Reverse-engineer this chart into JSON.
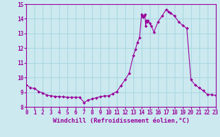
{
  "x": [
    0,
    0.5,
    1,
    1.5,
    2,
    2.5,
    3,
    3.5,
    4,
    4.5,
    5,
    5.5,
    6,
    6.5,
    7,
    7.5,
    8,
    8.5,
    9,
    9.5,
    10,
    10.5,
    11,
    11.5,
    12,
    12.5,
    13,
    13.25,
    13.5,
    13.75,
    14,
    14.1,
    14.2,
    14.3,
    14.4,
    14.5,
    14.6,
    14.7,
    14.8,
    15,
    15.2,
    15.5,
    16,
    16.5,
    17,
    17.25,
    17.5,
    18,
    18.5,
    19,
    19.5,
    20,
    20.5,
    21,
    21.5,
    22,
    22.5,
    23
  ],
  "y": [
    9.5,
    9.3,
    9.25,
    9.05,
    8.95,
    8.8,
    8.75,
    8.72,
    8.7,
    8.68,
    8.65,
    8.65,
    8.65,
    8.65,
    8.3,
    8.45,
    8.55,
    8.62,
    8.7,
    8.75,
    8.75,
    8.9,
    9.05,
    9.45,
    9.85,
    10.3,
    11.5,
    11.9,
    12.4,
    12.7,
    14.3,
    14.2,
    14.1,
    14.2,
    14.3,
    13.5,
    13.9,
    13.8,
    13.9,
    13.7,
    13.5,
    13.1,
    13.8,
    14.2,
    14.65,
    14.5,
    14.4,
    14.2,
    13.8,
    13.55,
    13.35,
    9.85,
    9.5,
    9.3,
    9.1,
    8.85,
    8.82,
    8.78
  ],
  "xlim": [
    0,
    23
  ],
  "ylim": [
    8,
    15
  ],
  "yticks": [
    8,
    9,
    10,
    11,
    12,
    13,
    14,
    15
  ],
  "xticks": [
    0,
    1,
    2,
    3,
    4,
    5,
    6,
    7,
    8,
    9,
    10,
    11,
    12,
    13,
    14,
    15,
    16,
    17,
    18,
    19,
    20,
    21,
    22,
    23
  ],
  "xlabel": "Windchill (Refroidissement éolien,°C)",
  "line_color": "#990099",
  "marker_color": "#990099",
  "bg_color": "#cce9f0",
  "grid_color": "#aad8e0",
  "tick_fontsize": 5.5,
  "xlabel_fontsize": 6.5
}
